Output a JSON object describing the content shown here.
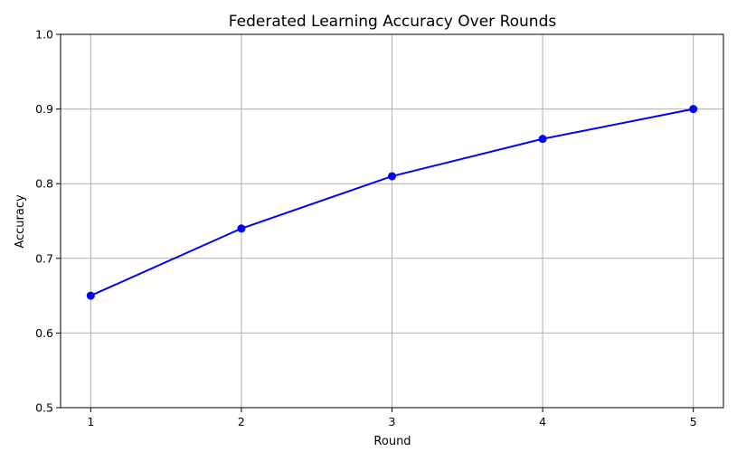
{
  "chart_data": {
    "type": "line",
    "title": "Federated Learning Accuracy Over Rounds",
    "xlabel": "Round",
    "ylabel": "Accuracy",
    "x": [
      1,
      2,
      3,
      4,
      5
    ],
    "series": [
      {
        "values": [
          0.65,
          0.74,
          0.81,
          0.86,
          0.9
        ],
        "color": "#0000ff",
        "marker": "circle"
      }
    ],
    "xlim": [
      0.8,
      5.2
    ],
    "ylim": [
      0.5,
      1.0
    ],
    "xticks": [
      1,
      2,
      3,
      4,
      5
    ],
    "xtick_labels": [
      "1",
      "2",
      "3",
      "4",
      "5"
    ],
    "yticks": [
      0.5,
      0.6,
      0.7,
      0.8,
      0.9,
      1.0
    ],
    "ytick_labels": [
      "0.5",
      "0.6",
      "0.7",
      "0.8",
      "0.9",
      "1.0"
    ],
    "grid": true,
    "grid_color": "#b0b0b0",
    "legend": false
  }
}
